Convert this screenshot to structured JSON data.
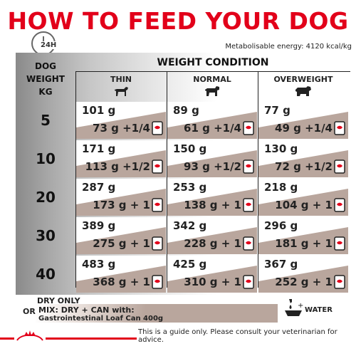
{
  "title": "HOW TO FEED YOUR DOG",
  "clock_label": "24H",
  "energy": "Metabolisable energy: 4120 kcal/kg",
  "header": {
    "dog_weight_lines": [
      "DOG",
      "WEIGHT",
      "KG"
    ],
    "weight_condition": "WEIGHT CONDITION",
    "columns": [
      "THIN",
      "NORMAL",
      "OVERWEIGHT"
    ]
  },
  "rows": [
    {
      "kg": "5",
      "cells": [
        {
          "dry": "101 g",
          "mix": "73 g +1/4"
        },
        {
          "dry": "89 g",
          "mix": "61 g +1/4"
        },
        {
          "dry": "77 g",
          "mix": "49 g +1/4"
        }
      ]
    },
    {
      "kg": "10",
      "cells": [
        {
          "dry": "171 g",
          "mix": "113 g +1/2"
        },
        {
          "dry": "150 g",
          "mix": "93 g +1/2"
        },
        {
          "dry": "130 g",
          "mix": "72 g +1/2"
        }
      ]
    },
    {
      "kg": "20",
      "cells": [
        {
          "dry": "287 g",
          "mix": "173 g + 1"
        },
        {
          "dry": "253 g",
          "mix": "138 g + 1"
        },
        {
          "dry": "218 g",
          "mix": "104 g + 1"
        }
      ]
    },
    {
      "kg": "30",
      "cells": [
        {
          "dry": "389 g",
          "mix": "275 g + 1"
        },
        {
          "dry": "342 g",
          "mix": "228 g + 1"
        },
        {
          "dry": "296 g",
          "mix": "181 g + 1"
        }
      ]
    },
    {
      "kg": "40",
      "cells": [
        {
          "dry": "483 g",
          "mix": "368 g + 1"
        },
        {
          "dry": "425 g",
          "mix": "310 g + 1"
        },
        {
          "dry": "367 g",
          "mix": "252 g + 1"
        }
      ]
    }
  ],
  "footer": {
    "dry_only": "DRY ONLY",
    "or": "OR",
    "mix_line1": "MIX: DRY + CAN with:",
    "mix_line2": "Gastrointestinal Loaf Can 400g",
    "water": "WATER",
    "disclaimer": "This is a guide only. Please consult your veterinarian for advice."
  },
  "colors": {
    "brand_red": "#e2001a",
    "mix_fill": "#b9a69d"
  },
  "icons": [
    "clock-icon",
    "thin-dog-icon",
    "normal-dog-icon",
    "overweight-dog-icon",
    "can-icon",
    "water-bowl-icon",
    "royal-canin-logo"
  ]
}
